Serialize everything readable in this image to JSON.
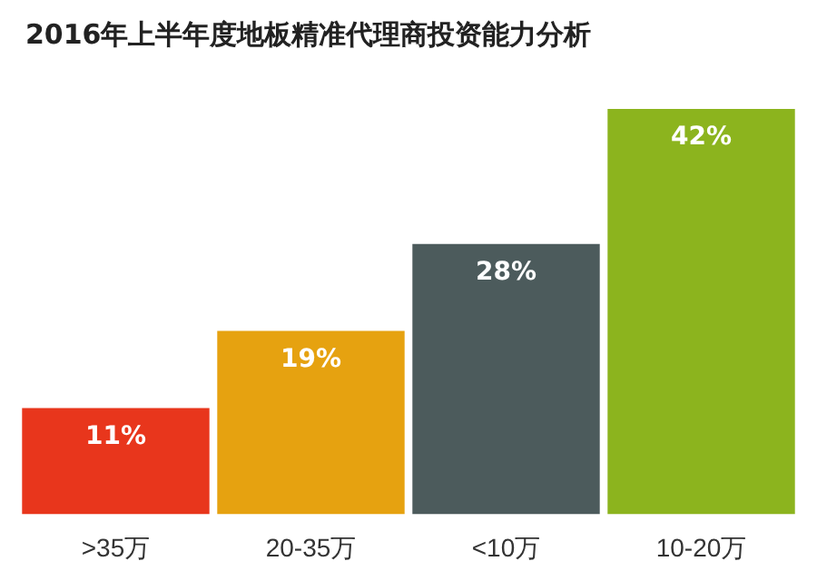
{
  "chart_data": {
    "type": "bar",
    "title": "2016年上半年度地板精准代理商投资能力分析",
    "categories": [
      ">35万",
      "20-35万",
      "<10万",
      "10-20万"
    ],
    "values": [
      11,
      19,
      28,
      42
    ],
    "colors": [
      "#e8361c",
      "#e6a210",
      "#4c5b5c",
      "#8cb41e"
    ],
    "value_labels": [
      "11%",
      "19%",
      "28%",
      "42%"
    ],
    "legend": false,
    "grid": false
  }
}
